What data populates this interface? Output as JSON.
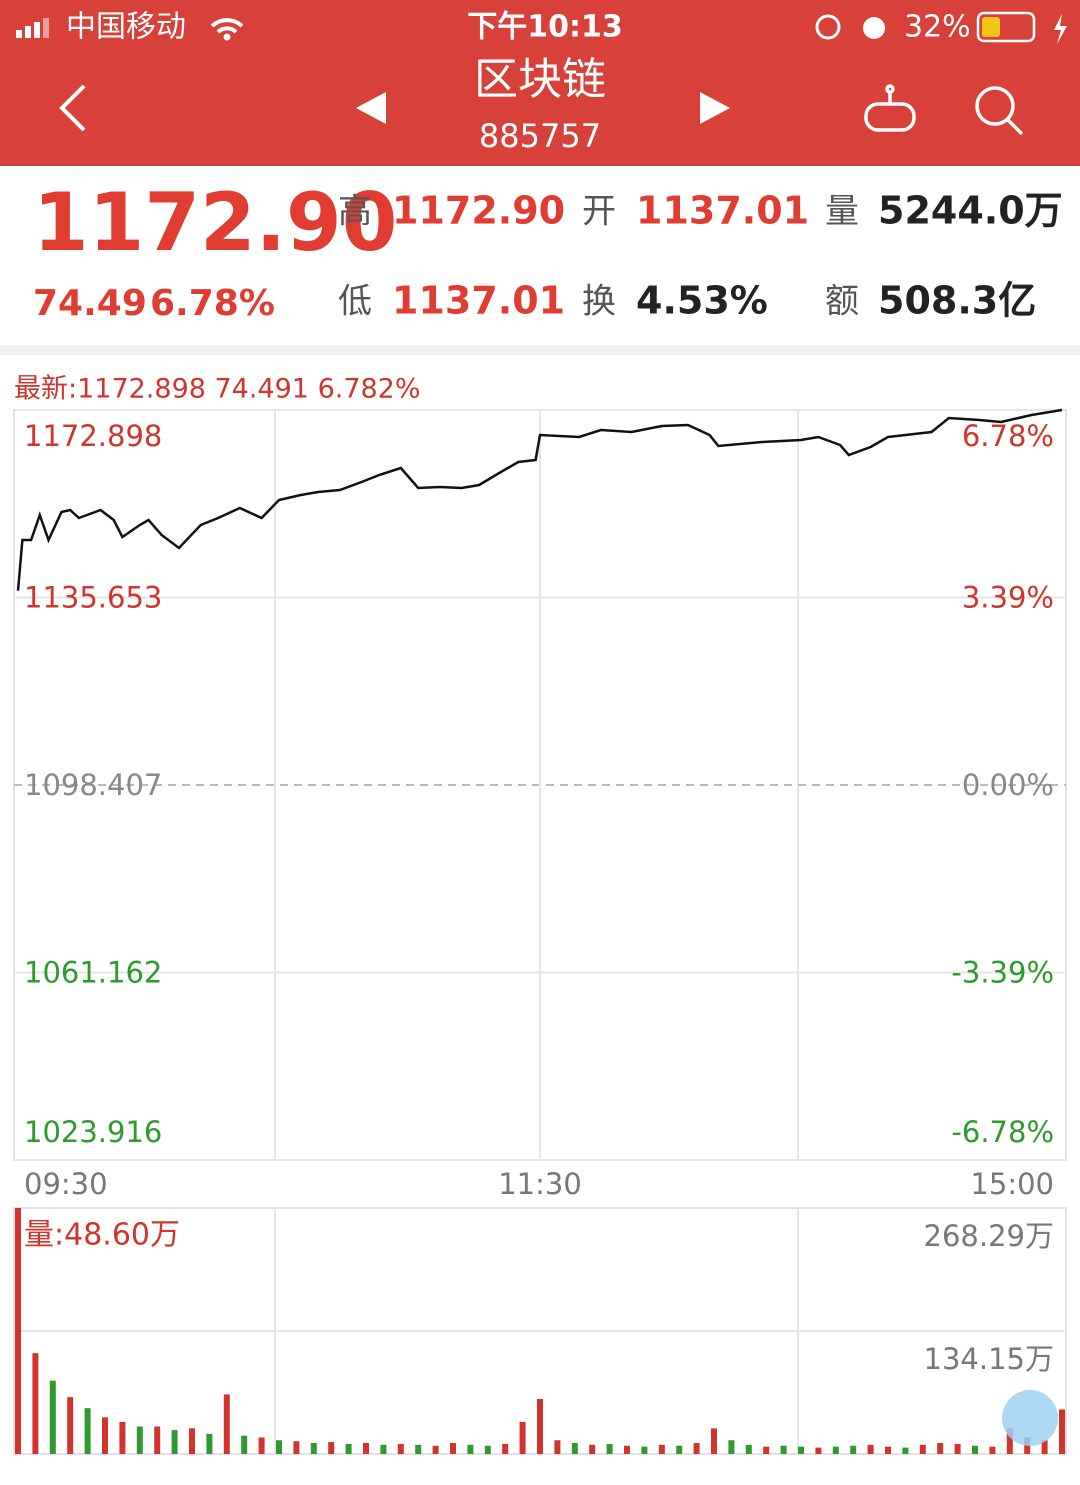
{
  "status_bar": {
    "carrier": "中国移动",
    "time": "下午10:13",
    "battery": "32%"
  },
  "header": {
    "title": "区块链",
    "code": "885757"
  },
  "quote": {
    "price": "1172.90",
    "change": "74.49",
    "change_pct": "6.78%",
    "fields": [
      {
        "label": "高",
        "value": "1172.90"
      },
      {
        "label": "开",
        "value": "1137.01"
      },
      {
        "label": "量",
        "value": "5244.0万"
      },
      {
        "label": "低",
        "value": "1137.01"
      },
      {
        "label": "换",
        "value": "4.53%"
      },
      {
        "label": "额",
        "value": "508.3亿"
      }
    ]
  },
  "chart_data": [
    {
      "type": "line",
      "title": "最新:1172.898 74.491 6.782%",
      "x": [
        0,
        1,
        3,
        5,
        7,
        10,
        12,
        14,
        19,
        22,
        24,
        28,
        30,
        33,
        37,
        42,
        46,
        51,
        56,
        60,
        65,
        69,
        74,
        79,
        83,
        88,
        92,
        97,
        102,
        106,
        111,
        115,
        119,
        120,
        129,
        134,
        141,
        148,
        154,
        159,
        161,
        171,
        180,
        184,
        189,
        191,
        196,
        200,
        210,
        214,
        221,
        226,
        233,
        240
      ],
      "series": [
        {
          "color": "#111111",
          "values": [
            1137.01,
            1147.07,
            1147.07,
            1152.04,
            1147.07,
            1152.64,
            1153.03,
            1151.44,
            1153.03,
            1151.05,
            1147.67,
            1150.06,
            1151.05,
            1148.07,
            1145.49,
            1150.06,
            1151.44,
            1153.43,
            1151.44,
            1155.02,
            1156.02,
            1156.61,
            1157.01,
            1158.6,
            1159.99,
            1161.38,
            1157.41,
            1157.6,
            1157.41,
            1158.0,
            1160.58,
            1162.57,
            1162.97,
            1167.93,
            1167.54,
            1168.93,
            1168.53,
            1169.72,
            1169.92,
            1167.93,
            1165.75,
            1166.54,
            1166.94,
            1167.54,
            1165.95,
            1163.96,
            1165.55,
            1167.54,
            1168.53,
            1171.31,
            1170.91,
            1170.51,
            1171.9,
            1172.9
          ]
        }
      ],
      "xlim": [
        0,
        240
      ],
      "xticks": [
        {
          "value": 0,
          "label": "09:30"
        },
        {
          "value": 120,
          "label": "11:30"
        },
        {
          "value": 240,
          "label": "15:00"
        }
      ],
      "ylim": [
        1023.916,
        1172.898
      ],
      "yticks": [
        1023.916,
        1061.162,
        1098.407,
        1135.653,
        1172.898
      ],
      "y2lim": [
        -6.78,
        6.78
      ],
      "y2ticks": [
        {
          "value": -6.78,
          "label": "-6.78%"
        },
        {
          "value": -3.39,
          "label": "-3.39%"
        },
        {
          "value": 0,
          "label": "0.00%"
        },
        {
          "value": 3.39,
          "label": "3.39%"
        },
        {
          "value": 6.78,
          "label": "6.78%"
        }
      ],
      "grid": true
    },
    {
      "type": "bar",
      "title": "量:48.60万",
      "x": [
        0,
        4,
        8,
        12,
        16,
        20,
        24,
        28,
        32,
        36,
        40,
        44,
        48,
        52,
        56,
        60,
        64,
        68,
        72,
        76,
        80,
        84,
        88,
        92,
        96,
        100,
        104,
        108,
        112,
        116,
        120,
        124,
        128,
        132,
        136,
        140,
        144,
        148,
        152,
        156,
        160,
        164,
        168,
        172,
        176,
        180,
        184,
        188,
        192,
        196,
        200,
        204,
        208,
        212,
        216,
        220,
        224,
        228,
        232,
        236,
        240
      ],
      "series": [
        {
          "color": "#d0342c",
          "values": [
            268.29,
            110,
            null,
            62,
            null,
            40,
            35,
            null,
            30,
            null,
            28,
            null,
            65,
            null,
            18,
            null,
            14,
            null,
            13,
            null,
            12,
            null,
            11,
            null,
            9,
            12,
            null,
            null,
            11,
            35,
            60,
            15,
            null,
            10,
            null,
            9,
            null,
            10,
            null,
            12,
            28,
            null,
            null,
            8,
            null,
            null,
            7,
            null,
            null,
            10,
            8,
            null,
            10,
            12,
            11,
            null,
            8,
            28,
            18,
            15,
            48.6
          ]
        },
        {
          "color": "#2e9a2e",
          "values": [
            null,
            null,
            80,
            null,
            50,
            null,
            null,
            30,
            null,
            26,
            null,
            22,
            null,
            20,
            null,
            15,
            null,
            12,
            null,
            11,
            null,
            10,
            null,
            10,
            null,
            null,
            10,
            9,
            null,
            null,
            null,
            null,
            12,
            null,
            11,
            null,
            8,
            null,
            9,
            null,
            null,
            15,
            10,
            null,
            9,
            8,
            null,
            8,
            9,
            null,
            null,
            7,
            null,
            null,
            null,
            9,
            null,
            null,
            null,
            null,
            null
          ]
        }
      ],
      "xlim": [
        0,
        240
      ],
      "ylim": [
        0,
        268.29
      ],
      "yticks": [
        {
          "value": 134.15,
          "label": "134.15万"
        },
        {
          "value": 268.29,
          "label": "268.29万"
        }
      ],
      "grid": true
    }
  ]
}
